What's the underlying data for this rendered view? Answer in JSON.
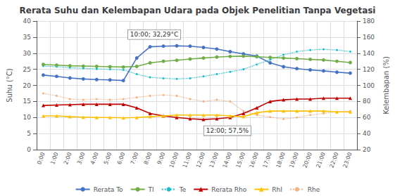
{
  "chart_data": {
    "type": "line",
    "title": "Rerata Suhu dan Kelembapan Udara pada Objek Penelitian Tanpa Vegetasi",
    "ylabel": "Suhu (°C)",
    "y2label": "Kelembapan (%)",
    "categories": [
      "0:00",
      "1:00",
      "2:00",
      "3:00",
      "4:00",
      "5:00",
      "6:00",
      "7:00",
      "8:00",
      "9:00",
      "10:00",
      "11:00",
      "12:00",
      "13:00",
      "14:00",
      "15:00",
      "16:00",
      "17:00",
      "18:00",
      "19:00",
      "20:00",
      "21:00",
      "22:00",
      "23:00"
    ],
    "ylim": [
      0,
      40
    ],
    "yticks": [
      0,
      5,
      10,
      15,
      20,
      25,
      30,
      35,
      40
    ],
    "y2lim": [
      20,
      180
    ],
    "y2ticks": [
      20,
      40,
      60,
      80,
      100,
      120,
      140,
      160,
      180
    ],
    "grid": true,
    "legend": "bottom",
    "series": [
      {
        "name": "Rerata To",
        "color": "#4472C4",
        "marker": "circle",
        "line_style": "solid",
        "values": [
          23.2,
          22.8,
          22.3,
          22.0,
          21.8,
          21.7,
          21.5,
          28.5,
          32.0,
          32.2,
          32.29,
          32.2,
          31.8,
          31.3,
          30.5,
          29.8,
          29.1,
          27.0,
          25.8,
          25.2,
          24.8,
          24.5,
          24.1,
          23.8
        ]
      },
      {
        "name": "TI",
        "color": "#70AD47",
        "marker": "circle",
        "line_style": "solid",
        "values": [
          26.5,
          26.3,
          26.1,
          26.0,
          25.9,
          25.8,
          25.7,
          25.9,
          27.0,
          27.5,
          27.8,
          28.2,
          28.5,
          28.8,
          29.0,
          29.1,
          28.9,
          28.7,
          28.5,
          28.3,
          28.1,
          27.9,
          27.5,
          27.1
        ]
      },
      {
        "name": "Te",
        "color": "#17BECF",
        "marker": "point",
        "line_style": "dotted",
        "values": [
          26.0,
          25.8,
          25.5,
          25.3,
          25.1,
          25.0,
          24.8,
          23.5,
          22.5,
          22.2,
          22.0,
          22.2,
          22.8,
          23.5,
          24.2,
          25.0,
          26.5,
          28.0,
          29.5,
          30.5,
          31.0,
          31.2,
          31.0,
          30.5
        ]
      },
      {
        "name": "Rerata Rho",
        "color": "#C00000",
        "marker": "triangle",
        "line_style": "solid",
        "axis": "y2",
        "values": [
          75.0,
          75.5,
          76.0,
          76.5,
          76.5,
          76.5,
          76.5,
          72.0,
          65.0,
          62.0,
          60.0,
          58.5,
          57.5,
          58.5,
          60.0,
          65.0,
          72.0,
          80.0,
          82.0,
          83.0,
          83.0,
          84.0,
          84.0,
          84.0
        ]
      },
      {
        "name": "RhI",
        "color": "#FFC000",
        "marker": "triangle",
        "line_style": "solid",
        "axis": "y2",
        "values": [
          62.0,
          62.0,
          61.0,
          60.5,
          60.0,
          60.0,
          59.5,
          60.0,
          61.0,
          62.0,
          63.0,
          63.0,
          63.0,
          63.0,
          62.0,
          61.0,
          66.0,
          68.0,
          68.0,
          68.0,
          68.0,
          68.0,
          67.0,
          67.0
        ]
      },
      {
        "name": "Rhe",
        "color": "#F4B183",
        "marker": "point",
        "line_style": "dotted",
        "axis": "y2",
        "values": [
          90.0,
          87.0,
          83.0,
          82.0,
          83.0,
          82.0,
          83.0,
          85.0,
          87.0,
          88.0,
          87.0,
          83.0,
          80.0,
          82.0,
          80.0,
          68.0,
          63.0,
          60.5,
          58.0,
          60.0,
          63.0,
          65.0,
          67.0,
          68.0
        ]
      }
    ],
    "annotations": [
      {
        "text": "10:00; 32,29°C",
        "x": "10:00",
        "y": 32.29
      },
      {
        "text": "12:00; 57,5%",
        "x": "12:00",
        "y": 57.5,
        "axis": "y2"
      }
    ]
  }
}
